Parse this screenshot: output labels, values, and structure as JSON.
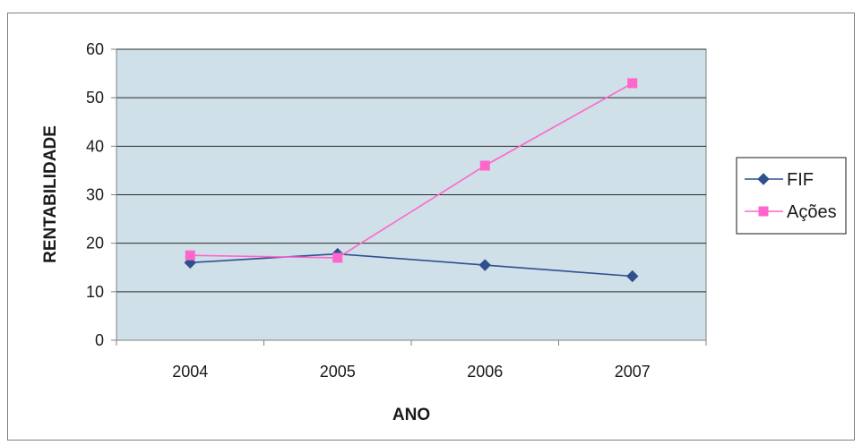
{
  "chart_data": {
    "type": "line",
    "title": "",
    "xlabel": "ANO",
    "ylabel": "RENTABILIDADE",
    "categories": [
      "2004",
      "2005",
      "2006",
      "2007"
    ],
    "ylim": [
      0,
      60
    ],
    "yticks": [
      "0",
      "10",
      "20",
      "30",
      "40",
      "50",
      "60"
    ],
    "grid": true,
    "legend_position": "right",
    "series": [
      {
        "name": "FIF",
        "values": [
          16,
          17.8,
          15.5,
          13.2
        ],
        "color": "#2f4f8f",
        "marker": "diamond"
      },
      {
        "name": "Ações",
        "values": [
          17.5,
          17,
          36,
          53
        ],
        "color": "#ff66cc",
        "marker": "square"
      }
    ],
    "plot_background": "#cfe0e8"
  }
}
